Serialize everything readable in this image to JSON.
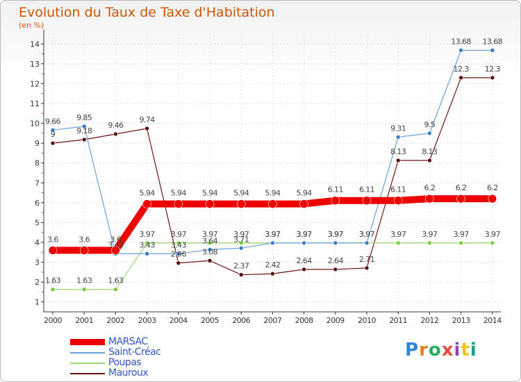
{
  "title": "Evolution du Taux de Taxe d'Habitation",
  "subtitle": "(en %)",
  "brand": "Proxiti",
  "chart_data": {
    "type": "line",
    "title": "Evolution du Taux de Taxe d'Habitation",
    "ylabel": "(en %)",
    "xlabel": "",
    "ylim": [
      0.5,
      14.5
    ],
    "yticks": [
      1,
      2,
      3,
      4,
      5,
      6,
      7,
      8,
      9,
      10,
      11,
      12,
      13,
      14
    ],
    "x": [
      "2000",
      "2001",
      "2002",
      "2003",
      "2004",
      "2005",
      "2006",
      "2007",
      "2008",
      "2009",
      "2010",
      "2011",
      "2012",
      "2013",
      "2014"
    ],
    "series": [
      {
        "name": "Mauroux",
        "color": "#6e1414",
        "point_color": "#5a0f0f",
        "width": 1.2,
        "point_r": 3,
        "values": [
          9,
          9.18,
          9.46,
          9.74,
          2.96,
          3.08,
          2.37,
          2.42,
          2.64,
          2.64,
          2.71,
          8.13,
          8.13,
          12.3,
          12.3
        ],
        "labels": [
          "9",
          "9.18",
          "9.46",
          "9.74",
          "2.96",
          "3.08",
          "2.37",
          "2.42",
          "2.64",
          "2.64",
          "2.71",
          "8.13",
          "8.13",
          "12.3",
          "12.3"
        ]
      },
      {
        "name": "Poupas",
        "color": "#99d96b",
        "point_color": "#7ccc44",
        "width": 1.2,
        "point_r": 3,
        "values": [
          1.63,
          1.63,
          1.63,
          3.97,
          3.97,
          3.97,
          3.97,
          3.97,
          3.97,
          3.97,
          3.97,
          3.97,
          3.97,
          3.97,
          3.97
        ],
        "labels": [
          "1.63",
          "1.63",
          "1.63",
          "3.97",
          "3.97",
          "3.97",
          "3.97",
          "3.97",
          "3.97",
          "3.97",
          "3.97",
          "3.97",
          "3.97",
          "3.97",
          "3.97"
        ]
      },
      {
        "name": "Saint-Créac",
        "color": "#6aa2d8",
        "point_color": "#3a7fc8",
        "width": 1.2,
        "point_r": 3,
        "values": [
          9.66,
          9.85,
          3.43,
          3.43,
          3.43,
          3.64,
          3.71,
          3.97,
          3.97,
          3.97,
          3.97,
          9.31,
          9.5,
          13.68,
          13.68
        ],
        "labels": [
          "9.66",
          "9.85",
          "3.43",
          "3.43",
          "3.43",
          "3.64",
          "3.71",
          "3.97",
          "3.97",
          "3.97",
          "3.97",
          "9.31",
          "9.5",
          "13.68",
          "13.68"
        ]
      },
      {
        "name": "MARSAC",
        "color": "#ee0000",
        "point_color": "#ee0000",
        "width": 10,
        "point_r": 6,
        "values": [
          3.6,
          3.6,
          3.6,
          5.94,
          5.94,
          5.94,
          5.94,
          5.94,
          5.94,
          6.11,
          6.11,
          6.11,
          6.2,
          6.2,
          6.2
        ],
        "labels": [
          "3.6",
          "3.6",
          "3.6",
          "5.94",
          "5.94",
          "5.94",
          "5.94",
          "5.94",
          "5.94",
          "6.11",
          "6.11",
          "6.11",
          "6.2",
          "6.2",
          "6.2"
        ]
      }
    ],
    "legend": [
      {
        "name": "MARSAC",
        "color": "#ee0000",
        "thick": true
      },
      {
        "name": "Saint-Créac",
        "color": "#6aa2d8",
        "thick": false
      },
      {
        "name": "Poupas",
        "color": "#99d96b",
        "thick": false
      },
      {
        "name": "Mauroux",
        "color": "#6e1414",
        "thick": false
      }
    ]
  }
}
